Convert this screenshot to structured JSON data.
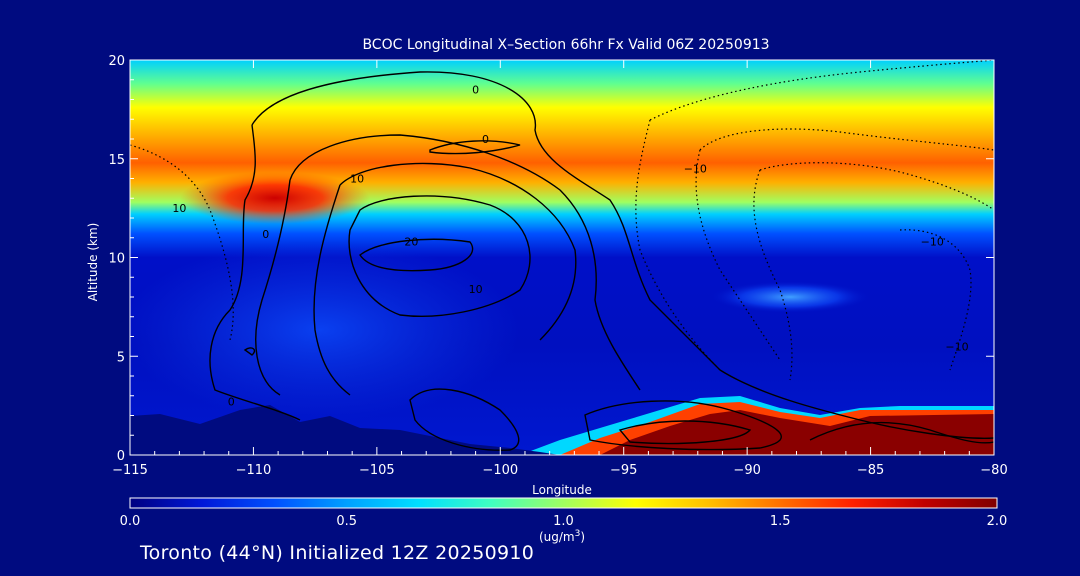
{
  "chart_data": {
    "type": "heatmap",
    "title": "BCOC Longitudinal X–Section 66hr  Fx Valid 06Z 20250913",
    "xlabel": "Longitude",
    "ylabel": "Altitude (km)",
    "xlim": [
      -115,
      -80
    ],
    "ylim": [
      0,
      20
    ],
    "x_ticks": [
      "−115",
      "−110",
      "−105",
      "−100",
      "−95",
      "−90",
      "−85",
      "−80"
    ],
    "y_ticks": [
      "0",
      "5",
      "10",
      "15",
      "20"
    ],
    "colorbar": {
      "min": 0.0,
      "max": 2.0,
      "ticks": [
        "0.0",
        "0.5",
        "1.0",
        "1.5",
        "2.0"
      ],
      "units_main": "(ug/m",
      "units_sup": "3",
      "units_close": ")",
      "colormap": [
        "#000080",
        "#0018d8",
        "#0050ff",
        "#00a0ff",
        "#00e0ff",
        "#40ffc0",
        "#a0ff60",
        "#ffff00",
        "#ffc000",
        "#ff7000",
        "#ff2000",
        "#c00000",
        "#800000"
      ]
    },
    "contour_labels": [
      {
        "text": "0",
        "x": -101.0,
        "y": 18.5
      },
      {
        "text": "0",
        "x": -100.6,
        "y": 16.0
      },
      {
        "text": "10",
        "x": -105.8,
        "y": 14.0
      },
      {
        "text": "10",
        "x": -113.0,
        "y": 12.5
      },
      {
        "text": "0",
        "x": -109.5,
        "y": 11.2
      },
      {
        "text": "20",
        "x": -103.6,
        "y": 10.8
      },
      {
        "text": "10",
        "x": -101.0,
        "y": 8.4
      },
      {
        "text": "−10",
        "x": -92.1,
        "y": 14.5
      },
      {
        "text": "−10",
        "x": -82.5,
        "y": 10.8
      },
      {
        "text": "−10",
        "x": -81.5,
        "y": 5.5
      },
      {
        "text": "0",
        "x": -110.9,
        "y": 2.7
      }
    ]
  },
  "footer": "Toronto (44°N) Initialized 12Z 20250910"
}
